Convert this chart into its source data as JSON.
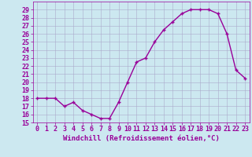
{
  "x": [
    0,
    1,
    2,
    3,
    4,
    5,
    6,
    7,
    8,
    9,
    10,
    11,
    12,
    13,
    14,
    15,
    16,
    17,
    18,
    19,
    20,
    21,
    22,
    23
  ],
  "y": [
    18,
    18,
    18,
    17,
    17.5,
    16.5,
    16,
    15.5,
    15.5,
    17.5,
    20,
    22.5,
    23,
    25,
    26.5,
    27.5,
    28.5,
    29,
    29,
    29,
    28.5,
    26,
    21.5,
    20.5
  ],
  "line_color": "#990099",
  "marker": "+",
  "marker_size": 3,
  "marker_lw": 1.0,
  "bg_color": "#cce8f0",
  "grid_color": "#aaaacc",
  "xlabel": "Windchill (Refroidissement éolien,°C)",
  "ylim": [
    15,
    30
  ],
  "xlim": [
    -0.5,
    23.5
  ],
  "yticks": [
    15,
    16,
    17,
    18,
    19,
    20,
    21,
    22,
    23,
    24,
    25,
    26,
    27,
    28,
    29
  ],
  "xticks": [
    0,
    1,
    2,
    3,
    4,
    5,
    6,
    7,
    8,
    9,
    10,
    11,
    12,
    13,
    14,
    15,
    16,
    17,
    18,
    19,
    20,
    21,
    22,
    23
  ],
  "tick_color": "#990099",
  "label_color": "#990099",
  "font_size": 6,
  "xlabel_fontsize": 6.5,
  "line_width": 1.0
}
